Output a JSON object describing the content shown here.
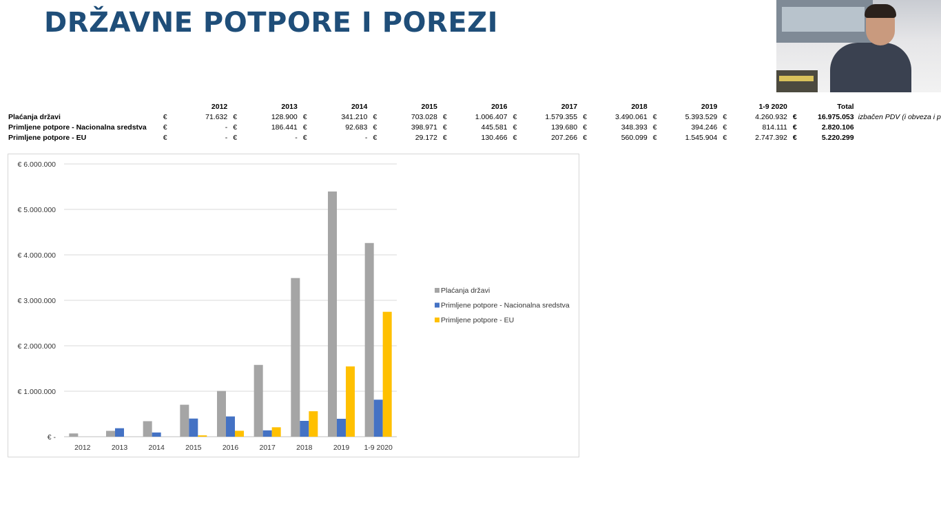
{
  "slide": {
    "title": "DRŽAVNE POTPORE I POREZI"
  },
  "table": {
    "headers": [
      "2012",
      "2013",
      "2014",
      "2015",
      "2016",
      "2017",
      "2018",
      "2019",
      "1-9 2020",
      "Total"
    ],
    "currency_symbol": "€",
    "rows": [
      {
        "label": "Plaćanja državi",
        "values": [
          "71.632",
          "128.900",
          "341.210",
          "703.028",
          "1.006.407",
          "1.579.355",
          "3.490.061",
          "5.393.529",
          "4.260.932"
        ],
        "total": "16.975.053",
        "note": "izbačen PDV (i obveza i p"
      },
      {
        "label": "Primljene potpore - Nacionalna sredstva",
        "values": [
          "-",
          "186.441",
          "92.683",
          "398.971",
          "445.581",
          "139.680",
          "348.393",
          "394.246",
          "814.111"
        ],
        "total": "2.820.106",
        "note": ""
      },
      {
        "label": "Primljene potpore - EU",
        "values": [
          "-",
          "-",
          "-",
          "29.172",
          "130.466",
          "207.266",
          "560.099",
          "1.545.904",
          "2.747.392"
        ],
        "total": "5.220.299",
        "note": ""
      }
    ]
  },
  "chart_data": {
    "type": "bar",
    "categories": [
      "2012",
      "2013",
      "2014",
      "2015",
      "2016",
      "2017",
      "2018",
      "2019",
      "1-9 2020"
    ],
    "series": [
      {
        "name": "Plaćanja državi",
        "color": "#a5a5a5",
        "values": [
          71632,
          128900,
          341210,
          703028,
          1006407,
          1579355,
          3490061,
          5393529,
          4260932
        ]
      },
      {
        "name": "Primljene potpore - Nacionalna sredstva",
        "color": "#4472c4",
        "values": [
          0,
          186441,
          92683,
          398971,
          445581,
          139680,
          348393,
          394246,
          814111
        ]
      },
      {
        "name": "Primljene potpore - EU",
        "color": "#ffc000",
        "values": [
          0,
          0,
          0,
          29172,
          130466,
          207266,
          560099,
          1545904,
          2747392
        ]
      }
    ],
    "y_ticks": [
      {
        "value": 0,
        "label": "€ -"
      },
      {
        "value": 1000000,
        "label": "€ 1.000.000"
      },
      {
        "value": 2000000,
        "label": "€ 2.000.000"
      },
      {
        "value": 3000000,
        "label": "€ 3.000.000"
      },
      {
        "value": 4000000,
        "label": "€ 4.000.000"
      },
      {
        "value": 5000000,
        "label": "€ 5.000.000"
      },
      {
        "value": 6000000,
        "label": "€ 6.000.000"
      }
    ],
    "ylim": [
      0,
      6000000
    ],
    "grid": true,
    "legend_position": "right"
  }
}
